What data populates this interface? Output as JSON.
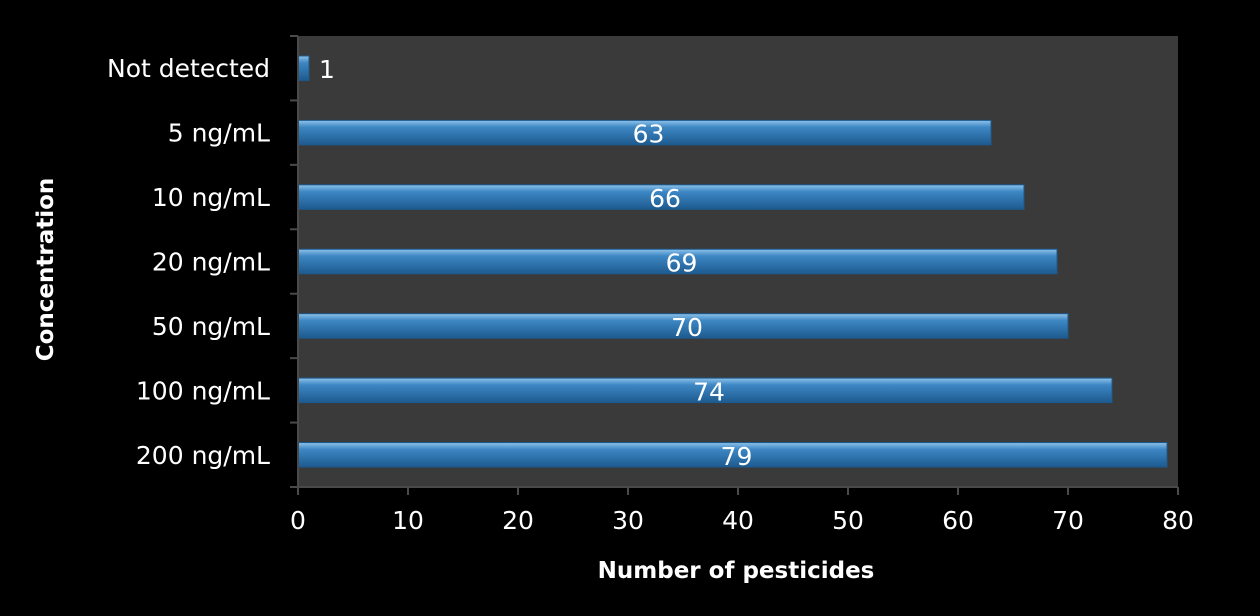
{
  "chart_data": {
    "type": "bar",
    "orientation": "horizontal",
    "categories": [
      "Not detected",
      "5 ng/mL",
      "10 ng/mL",
      "20 ng/mL",
      "50 ng/mL",
      "100 ng/mL",
      "200 ng/mL"
    ],
    "values": [
      1,
      63,
      66,
      69,
      70,
      74,
      79
    ],
    "data_labels": [
      "1",
      "63",
      "66",
      "69",
      "70",
      "74",
      "79"
    ],
    "title": "",
    "xlabel": "Number of pesticides",
    "ylabel": "Concentration",
    "xlim": [
      0,
      80
    ],
    "x_ticks": [
      0,
      10,
      20,
      30,
      40,
      50,
      60,
      70,
      80
    ],
    "x_tick_labels": [
      "0",
      "10",
      "20",
      "30",
      "40",
      "50",
      "60",
      "70",
      "80"
    ],
    "grid": false,
    "legend": "none",
    "colors": {
      "background": "#000000",
      "plot_area": "#3a3a3a",
      "bar": "#3d87c4",
      "bar_highlight": "#8ec3ea",
      "bar_shadow": "#1d5a8f",
      "text": "#ffffff",
      "axis": "#4a4a4a"
    }
  }
}
